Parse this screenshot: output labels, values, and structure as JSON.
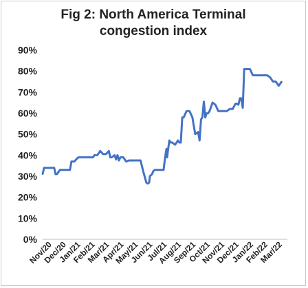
{
  "chart_data": {
    "type": "line",
    "title_line1": "Fig 2: North America Terminal",
    "title_line2": "congestion index",
    "xlabel": "",
    "ylabel": "",
    "ylim": [
      0,
      90
    ],
    "y_tick_labels": [
      "0%",
      "10%",
      "20%",
      "30%",
      "40%",
      "50%",
      "60%",
      "70%",
      "80%",
      "90%"
    ],
    "y_ticks": [
      0,
      10,
      20,
      30,
      40,
      50,
      60,
      70,
      80,
      90
    ],
    "x_tick_labels": [
      "Nov/20",
      "Dec/20",
      "Jan/21",
      "Feb/21",
      "Mar/21",
      "Apr/21",
      "May/21",
      "Jun/21",
      "Jul/21",
      "Aug/21",
      "Sep/21",
      "Oct/21",
      "Nov/21",
      "Dec/21",
      "Jan/22",
      "Feb/22",
      "Mar/22"
    ],
    "grid": false,
    "legend": "none",
    "line_color": "#4472c4",
    "series": [
      {
        "x": [
          0,
          0.1,
          0.3,
          0.8,
          0.9,
          1.0,
          1.2,
          1.5,
          1.9,
          2.0,
          2.2,
          2.4,
          2.5,
          3.0,
          3.5,
          3.6,
          3.8,
          4.0,
          4.2,
          4.4,
          4.6,
          4.7,
          4.8,
          5.0,
          5.1,
          5.2,
          5.3,
          5.4,
          5.6,
          5.8,
          6.0,
          6.2,
          6.4,
          6.8,
          7.0,
          7.2,
          7.3,
          7.4,
          7.45,
          7.6,
          7.7,
          7.8,
          8.0,
          8.4,
          8.5,
          8.6,
          8.65,
          8.7,
          8.8,
          8.9,
          9.0,
          9.2,
          9.4,
          9.5,
          9.6,
          9.7,
          9.8,
          10.0,
          10.2,
          10.4,
          10.6,
          10.8,
          10.9,
          11.0,
          11.1,
          11.2,
          11.3,
          11.4,
          11.5,
          11.6,
          11.8,
          12.0,
          12.2,
          12.4,
          12.6,
          12.8,
          13.0,
          13.2,
          13.4,
          13.5,
          13.6,
          13.7,
          13.8,
          13.9,
          14.0,
          14.2,
          14.4,
          14.6,
          15.0,
          15.2,
          15.4,
          15.6,
          15.8,
          16.0,
          16.2,
          16.4,
          16.6
        ],
        "values": [
          31,
          34,
          34,
          34,
          31,
          31,
          33,
          33,
          33,
          37,
          37,
          38.5,
          39,
          39,
          39,
          40,
          40,
          42,
          40.5,
          40.5,
          42,
          39,
          39,
          40,
          38,
          40,
          37.5,
          39,
          39,
          37,
          37.5,
          37.5,
          37.5,
          37.5,
          32,
          27,
          26.5,
          27,
          30,
          31,
          32.5,
          33,
          33,
          33,
          38.5,
          43,
          39,
          42,
          47,
          46,
          46,
          45,
          47,
          46,
          46,
          58,
          58,
          61,
          61,
          58,
          50,
          51,
          47,
          57,
          58,
          65.5,
          58,
          60,
          60,
          61,
          65,
          64,
          61,
          61,
          61,
          61,
          62,
          62,
          64.5,
          64.5,
          64,
          67,
          67,
          62.5,
          81,
          81,
          81,
          78,
          78,
          78,
          78,
          78,
          77,
          75,
          75,
          73,
          75
        ]
      }
    ]
  }
}
